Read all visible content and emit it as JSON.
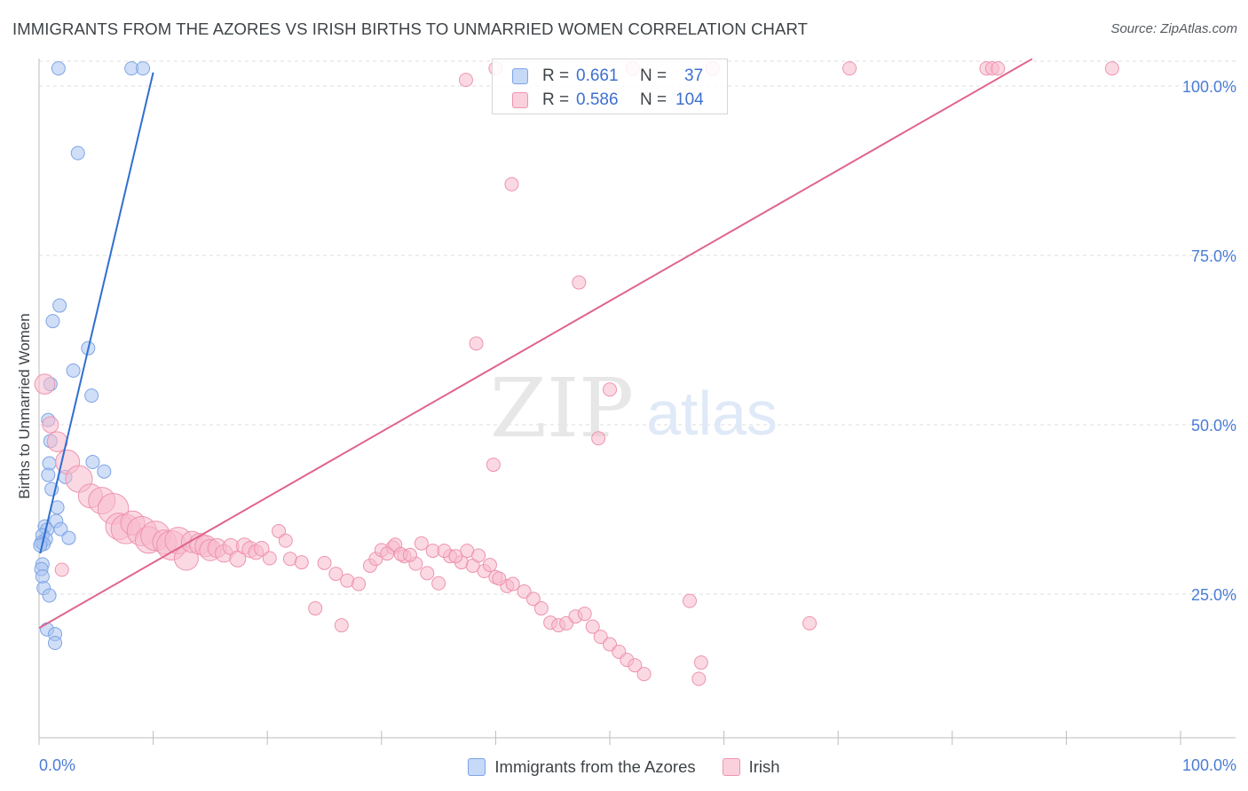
{
  "title": "IMMIGRANTS FROM THE AZORES VS IRISH BIRTHS TO UNMARRIED WOMEN CORRELATION CHART",
  "source": "Source: ZipAtlas.com",
  "watermark": {
    "zip": "ZIP",
    "atlas": "atlas"
  },
  "stats": [
    {
      "label": "R =",
      "r": "0.661",
      "n_label": "N =",
      "n": "37",
      "color": "#a9c4f0",
      "border": "#7ea3e6"
    },
    {
      "label": "R =",
      "r": "0.586",
      "n_label": "N =",
      "n": "104",
      "color": "#f7b9cc",
      "border": "#ee93b0"
    }
  ],
  "legend": [
    {
      "name": "Immigrants from the Azores",
      "color": "#c6d9f7",
      "border": "#7ea3e6"
    },
    {
      "name": "Irish",
      "color": "#fbd0dd",
      "border": "#ee93b0"
    }
  ],
  "chart_data": {
    "type": "scatter",
    "title": "IMMIGRANTS FROM THE AZORES VS IRISH BIRTHS TO UNMARRIED WOMEN CORRELATION CHART",
    "xlabel": "",
    "ylabel": "Births to Unmarried Women",
    "xlim": [
      0,
      100
    ],
    "ylim": [
      0,
      104
    ],
    "x_tick_labels": [
      {
        "value": 0,
        "label": "0.0%"
      },
      {
        "value": 100,
        "label": "100.0%"
      }
    ],
    "y_tick_labels": [
      {
        "value": 25,
        "label": "25.0%"
      },
      {
        "value": 50,
        "label": "50.0%"
      },
      {
        "value": 75,
        "label": "75.0%"
      },
      {
        "value": 100,
        "label": "100.0%"
      }
    ],
    "grid": "horizontal dashed",
    "legend_position": "bottom",
    "series": [
      {
        "name": "Immigrants from the Azores",
        "color": "#a9c4f0",
        "stroke": "#7ea3e6",
        "trend_color": "#2f6fd0",
        "trend": {
          "x": [
            0.1,
            10
          ],
          "y": [
            31,
            102
          ]
        },
        "points": [
          {
            "x": 1.7,
            "y": 102.6,
            "s": 1
          },
          {
            "x": 8.1,
            "y": 102.6,
            "s": 1
          },
          {
            "x": 9.1,
            "y": 102.6,
            "s": 1
          },
          {
            "x": 3.4,
            "y": 90.1,
            "s": 1
          },
          {
            "x": 1.8,
            "y": 67.6,
            "s": 1
          },
          {
            "x": 1.2,
            "y": 65.3,
            "s": 1
          },
          {
            "x": 4.3,
            "y": 61.3,
            "s": 1
          },
          {
            "x": 3.0,
            "y": 58.0,
            "s": 1
          },
          {
            "x": 1.0,
            "y": 56.0,
            "s": 1
          },
          {
            "x": 4.6,
            "y": 54.3,
            "s": 1
          },
          {
            "x": 0.8,
            "y": 50.7,
            "s": 1
          },
          {
            "x": 1.0,
            "y": 47.6,
            "s": 1
          },
          {
            "x": 0.9,
            "y": 44.3,
            "s": 1
          },
          {
            "x": 4.7,
            "y": 44.5,
            "s": 1
          },
          {
            "x": 5.7,
            "y": 43.1,
            "s": 1
          },
          {
            "x": 0.8,
            "y": 42.6,
            "s": 1
          },
          {
            "x": 2.3,
            "y": 42.3,
            "s": 1
          },
          {
            "x": 1.1,
            "y": 40.5,
            "s": 1
          },
          {
            "x": 1.6,
            "y": 37.8,
            "s": 1
          },
          {
            "x": 1.5,
            "y": 35.8,
            "s": 1
          },
          {
            "x": 0.5,
            "y": 35.0,
            "s": 1
          },
          {
            "x": 1.9,
            "y": 34.6,
            "s": 1
          },
          {
            "x": 0.7,
            "y": 34.5,
            "s": 1
          },
          {
            "x": 0.3,
            "y": 33.7,
            "s": 1
          },
          {
            "x": 2.6,
            "y": 33.3,
            "s": 1
          },
          {
            "x": 0.6,
            "y": 33.1,
            "s": 1
          },
          {
            "x": 0.2,
            "y": 32.6,
            "s": 1
          },
          {
            "x": 0.4,
            "y": 32.4,
            "s": 1
          },
          {
            "x": 0.3,
            "y": 29.4,
            "s": 1
          },
          {
            "x": 0.2,
            "y": 28.7,
            "s": 1
          },
          {
            "x": 0.3,
            "y": 27.6,
            "s": 1
          },
          {
            "x": 0.4,
            "y": 25.9,
            "s": 1
          },
          {
            "x": 0.9,
            "y": 24.8,
            "s": 1
          },
          {
            "x": 0.7,
            "y": 19.8,
            "s": 1
          },
          {
            "x": 1.4,
            "y": 19.1,
            "s": 1
          },
          {
            "x": 1.4,
            "y": 17.8,
            "s": 1
          },
          {
            "x": 0.1,
            "y": 32.2,
            "s": 1
          }
        ]
      },
      {
        "name": "Irish",
        "color": "#f7b9cc",
        "stroke": "#ee93b0",
        "trend_color": "#e0648c",
        "trend": {
          "x": [
            0,
            87
          ],
          "y": [
            20,
            104
          ]
        },
        "points": [
          {
            "x": 40,
            "y": 102.6,
            "s": 1
          },
          {
            "x": 52,
            "y": 102.6,
            "s": 1
          },
          {
            "x": 59,
            "y": 102.6,
            "s": 1
          },
          {
            "x": 71,
            "y": 102.6,
            "s": 1
          },
          {
            "x": 83,
            "y": 102.6,
            "s": 1
          },
          {
            "x": 83.5,
            "y": 102.6,
            "s": 1
          },
          {
            "x": 84,
            "y": 102.6,
            "s": 1
          },
          {
            "x": 94,
            "y": 102.6,
            "s": 1
          },
          {
            "x": 103,
            "y": 102.6,
            "s": 1
          },
          {
            "x": 37.4,
            "y": 100.9,
            "s": 1
          },
          {
            "x": 41.4,
            "y": 85.5,
            "s": 1
          },
          {
            "x": 47.3,
            "y": 71.0,
            "s": 1
          },
          {
            "x": 38.3,
            "y": 62.0,
            "s": 1
          },
          {
            "x": 50.0,
            "y": 55.2,
            "s": 1
          },
          {
            "x": 49.0,
            "y": 48.0,
            "s": 1
          },
          {
            "x": 39.8,
            "y": 44.1,
            "s": 1
          },
          {
            "x": 0.5,
            "y": 56.0,
            "s": 1.5
          },
          {
            "x": 1.0,
            "y": 50.0,
            "s": 1.2
          },
          {
            "x": 1.6,
            "y": 47.5,
            "s": 1.5
          },
          {
            "x": 2.5,
            "y": 44.5,
            "s": 1.8
          },
          {
            "x": 3.5,
            "y": 42.0,
            "s": 2
          },
          {
            "x": 4.5,
            "y": 39.5,
            "s": 1.8
          },
          {
            "x": 5.5,
            "y": 38.8,
            "s": 2
          },
          {
            "x": 6.5,
            "y": 37.6,
            "s": 2.3
          },
          {
            "x": 7.0,
            "y": 35.0,
            "s": 2
          },
          {
            "x": 7.6,
            "y": 34.6,
            "s": 2.2
          },
          {
            "x": 8.2,
            "y": 35.5,
            "s": 1.8
          },
          {
            "x": 9.0,
            "y": 34.3,
            "s": 2.2
          },
          {
            "x": 9.6,
            "y": 33.0,
            "s": 2
          },
          {
            "x": 10.2,
            "y": 33.6,
            "s": 2.2
          },
          {
            "x": 11.0,
            "y": 32.7,
            "s": 1.8
          },
          {
            "x": 11.6,
            "y": 32.2,
            "s": 2.2
          },
          {
            "x": 12.2,
            "y": 32.9,
            "s": 2
          },
          {
            "x": 12.9,
            "y": 30.3,
            "s": 1.8
          },
          {
            "x": 13.4,
            "y": 32.7,
            "s": 1.6
          },
          {
            "x": 14.1,
            "y": 32.4,
            "s": 1.6
          },
          {
            "x": 14.6,
            "y": 32.1,
            "s": 1.6
          },
          {
            "x": 15.0,
            "y": 31.5,
            "s": 1.6
          },
          {
            "x": 15.6,
            "y": 31.8,
            "s": 1.4
          },
          {
            "x": 16.2,
            "y": 31.0,
            "s": 1.3
          },
          {
            "x": 16.8,
            "y": 32.0,
            "s": 1.2
          },
          {
            "x": 17.4,
            "y": 30.2,
            "s": 1.2
          },
          {
            "x": 18.0,
            "y": 32.1,
            "s": 1.2
          },
          {
            "x": 18.5,
            "y": 31.6,
            "s": 1.2
          },
          {
            "x": 19.0,
            "y": 31.2,
            "s": 1.1
          },
          {
            "x": 19.5,
            "y": 31.7,
            "s": 1.1
          },
          {
            "x": 20.2,
            "y": 30.3,
            "s": 1
          },
          {
            "x": 21.0,
            "y": 34.3,
            "s": 1
          },
          {
            "x": 21.6,
            "y": 32.9,
            "s": 1
          },
          {
            "x": 22.0,
            "y": 30.2,
            "s": 1
          },
          {
            "x": 23.0,
            "y": 29.7,
            "s": 1
          },
          {
            "x": 25.0,
            "y": 29.6,
            "s": 1
          },
          {
            "x": 26.0,
            "y": 28.0,
            "s": 1
          },
          {
            "x": 27.0,
            "y": 27.0,
            "s": 1
          },
          {
            "x": 28.0,
            "y": 26.5,
            "s": 1
          },
          {
            "x": 29.0,
            "y": 29.2,
            "s": 1
          },
          {
            "x": 29.5,
            "y": 30.2,
            "s": 1
          },
          {
            "x": 30.0,
            "y": 31.5,
            "s": 1
          },
          {
            "x": 31.0,
            "y": 31.9,
            "s": 1
          },
          {
            "x": 32.0,
            "y": 30.6,
            "s": 1
          },
          {
            "x": 33.0,
            "y": 29.5,
            "s": 1
          },
          {
            "x": 34.0,
            "y": 28.1,
            "s": 1
          },
          {
            "x": 35.0,
            "y": 26.6,
            "s": 1
          },
          {
            "x": 36.0,
            "y": 30.6,
            "s": 1
          },
          {
            "x": 37.0,
            "y": 29.7,
            "s": 1
          },
          {
            "x": 38.0,
            "y": 29.2,
            "s": 1
          },
          {
            "x": 39.0,
            "y": 28.4,
            "s": 1
          },
          {
            "x": 40.0,
            "y": 27.5,
            "s": 1
          },
          {
            "x": 41.0,
            "y": 26.2,
            "s": 1
          },
          {
            "x": 30.5,
            "y": 31.0,
            "s": 1
          },
          {
            "x": 31.2,
            "y": 32.3,
            "s": 1
          },
          {
            "x": 31.7,
            "y": 30.9,
            "s": 1
          },
          {
            "x": 32.5,
            "y": 30.8,
            "s": 1
          },
          {
            "x": 33.5,
            "y": 32.5,
            "s": 1
          },
          {
            "x": 34.5,
            "y": 31.4,
            "s": 1
          },
          {
            "x": 35.5,
            "y": 31.4,
            "s": 1
          },
          {
            "x": 36.5,
            "y": 30.6,
            "s": 1
          },
          {
            "x": 37.5,
            "y": 31.4,
            "s": 1
          },
          {
            "x": 38.5,
            "y": 30.7,
            "s": 1
          },
          {
            "x": 39.5,
            "y": 29.3,
            "s": 1
          },
          {
            "x": 40.3,
            "y": 27.3,
            "s": 1
          },
          {
            "x": 41.5,
            "y": 26.5,
            "s": 1
          },
          {
            "x": 42.5,
            "y": 25.4,
            "s": 1
          },
          {
            "x": 43.3,
            "y": 24.3,
            "s": 1
          },
          {
            "x": 44.0,
            "y": 22.9,
            "s": 1
          },
          {
            "x": 44.8,
            "y": 20.8,
            "s": 1
          },
          {
            "x": 45.5,
            "y": 20.4,
            "s": 1
          },
          {
            "x": 46.2,
            "y": 20.7,
            "s": 1
          },
          {
            "x": 47.0,
            "y": 21.7,
            "s": 1
          },
          {
            "x": 47.8,
            "y": 22.1,
            "s": 1
          },
          {
            "x": 48.5,
            "y": 20.2,
            "s": 1
          },
          {
            "x": 49.2,
            "y": 18.7,
            "s": 1
          },
          {
            "x": 50.0,
            "y": 17.6,
            "s": 1
          },
          {
            "x": 50.8,
            "y": 16.5,
            "s": 1
          },
          {
            "x": 51.5,
            "y": 15.3,
            "s": 1
          },
          {
            "x": 52.2,
            "y": 14.5,
            "s": 1
          },
          {
            "x": 53.0,
            "y": 13.2,
            "s": 1
          },
          {
            "x": 57.0,
            "y": 24.0,
            "s": 1
          },
          {
            "x": 57.8,
            "y": 12.5,
            "s": 1
          },
          {
            "x": 58.0,
            "y": 14.9,
            "s": 1
          },
          {
            "x": 67.5,
            "y": 20.7,
            "s": 1
          },
          {
            "x": 2.0,
            "y": 28.6,
            "s": 1
          },
          {
            "x": 24.2,
            "y": 22.9,
            "s": 1
          },
          {
            "x": 26.5,
            "y": 20.4,
            "s": 1
          }
        ]
      }
    ]
  }
}
